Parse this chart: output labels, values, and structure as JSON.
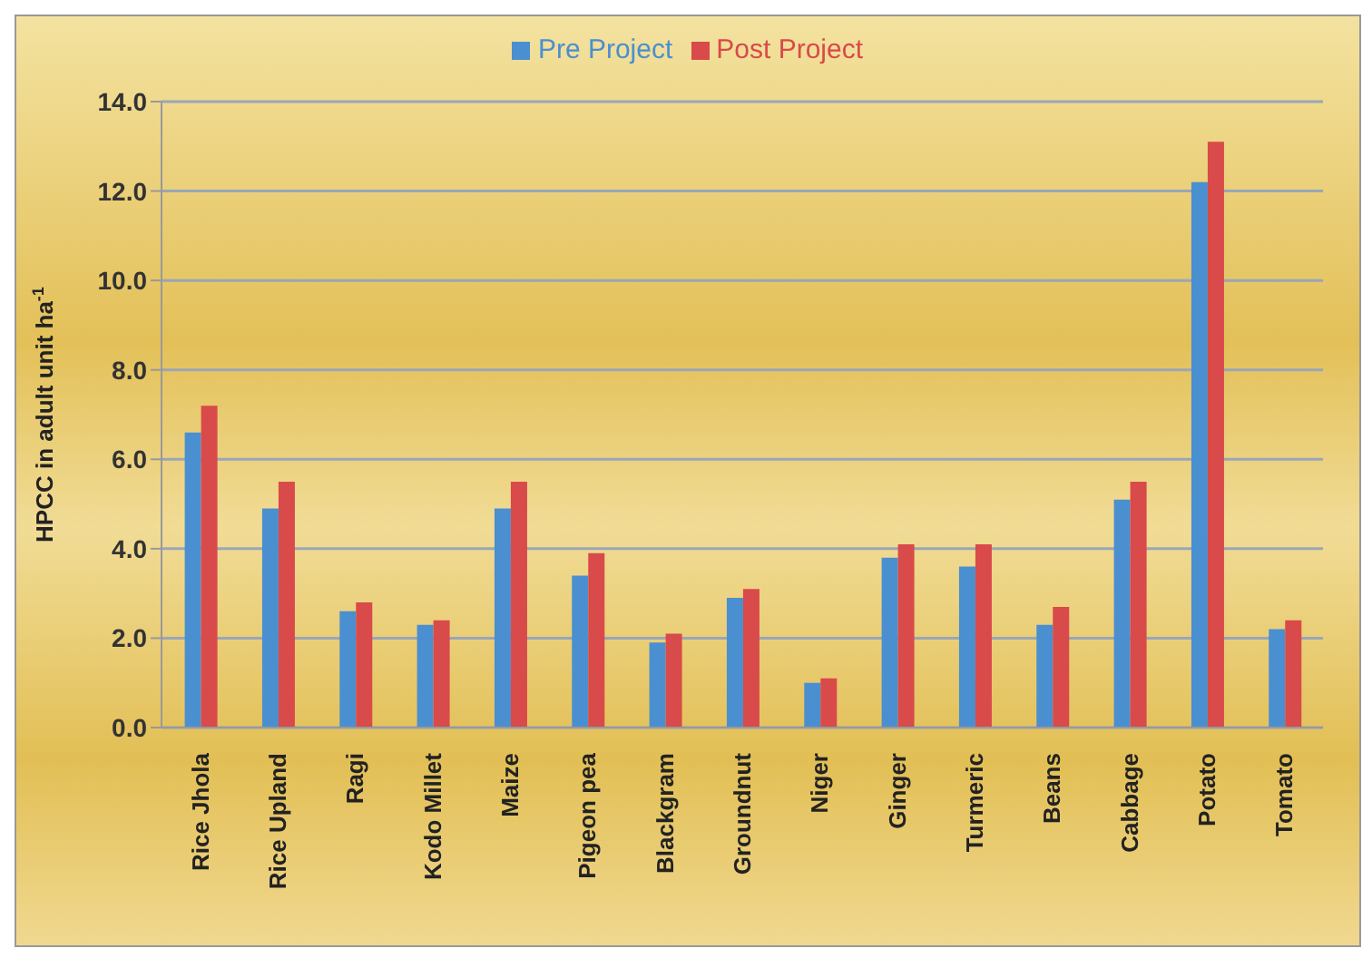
{
  "chart_data": {
    "type": "bar",
    "ylabel": "HPCC in adult unit ha$^{-1}$",
    "categories": [
      "Rice Jhola",
      "Rice Upland",
      "Ragi",
      "Kodo Millet",
      "Maize",
      "Pigeon pea",
      "Blackgram",
      "Groundnut",
      "Niger",
      "Ginger",
      "Turmeric",
      "Beans",
      "Cabbage",
      "Potato",
      "Tomato"
    ],
    "series": [
      {
        "name": "Pre Project",
        "color": "#4a8fd0",
        "values": [
          6.6,
          4.9,
          2.6,
          2.3,
          4.9,
          3.4,
          1.9,
          2.9,
          1.0,
          3.8,
          3.6,
          2.3,
          5.1,
          12.2,
          2.2
        ]
      },
      {
        "name": "Post Project",
        "color": "#d94a4a",
        "values": [
          7.2,
          5.5,
          2.8,
          2.4,
          5.5,
          3.9,
          2.1,
          3.1,
          1.1,
          4.1,
          4.1,
          2.7,
          5.5,
          13.1,
          2.4
        ]
      }
    ],
    "ylim": [
      0,
      14
    ],
    "yticks": [
      {
        "value": 0,
        "label": "0.0"
      },
      {
        "value": 2,
        "label": "2.0"
      },
      {
        "value": 4,
        "label": "4.0"
      },
      {
        "value": 6,
        "label": "6.0"
      },
      {
        "value": 8,
        "label": "8.0"
      },
      {
        "value": 10,
        "label": "10.0"
      },
      {
        "value": 12,
        "label": "12.0"
      },
      {
        "value": 14,
        "label": "14.0"
      }
    ],
    "grid": "y",
    "legend": "top"
  }
}
